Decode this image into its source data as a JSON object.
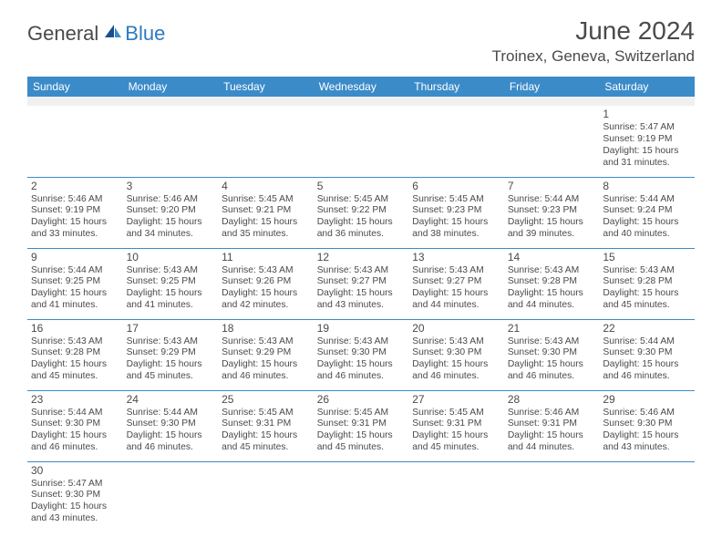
{
  "logo": {
    "part1": "General",
    "part2": "Blue"
  },
  "title": "June 2024",
  "location": "Troinex, Geneva, Switzerland",
  "colors": {
    "header_bg": "#3b8bc9",
    "header_text": "#ffffff",
    "gap_bg": "#f0f0f0",
    "rule": "#3b8bc9",
    "body_text": "#4a4a4a",
    "logo_gray": "#4a4a4a",
    "logo_blue": "#2b7bbf"
  },
  "fonts": {
    "title_size_pt": 21,
    "location_size_pt": 13,
    "dayheader_size_pt": 9,
    "daynum_size_pt": 9,
    "info_size_pt": 8
  },
  "day_headers": [
    "Sunday",
    "Monday",
    "Tuesday",
    "Wednesday",
    "Thursday",
    "Friday",
    "Saturday"
  ],
  "weeks": [
    [
      null,
      null,
      null,
      null,
      null,
      null,
      {
        "n": "1",
        "sr": "Sunrise: 5:47 AM",
        "ss": "Sunset: 9:19 PM",
        "d1": "Daylight: 15 hours",
        "d2": "and 31 minutes."
      }
    ],
    [
      {
        "n": "2",
        "sr": "Sunrise: 5:46 AM",
        "ss": "Sunset: 9:19 PM",
        "d1": "Daylight: 15 hours",
        "d2": "and 33 minutes."
      },
      {
        "n": "3",
        "sr": "Sunrise: 5:46 AM",
        "ss": "Sunset: 9:20 PM",
        "d1": "Daylight: 15 hours",
        "d2": "and 34 minutes."
      },
      {
        "n": "4",
        "sr": "Sunrise: 5:45 AM",
        "ss": "Sunset: 9:21 PM",
        "d1": "Daylight: 15 hours",
        "d2": "and 35 minutes."
      },
      {
        "n": "5",
        "sr": "Sunrise: 5:45 AM",
        "ss": "Sunset: 9:22 PM",
        "d1": "Daylight: 15 hours",
        "d2": "and 36 minutes."
      },
      {
        "n": "6",
        "sr": "Sunrise: 5:45 AM",
        "ss": "Sunset: 9:23 PM",
        "d1": "Daylight: 15 hours",
        "d2": "and 38 minutes."
      },
      {
        "n": "7",
        "sr": "Sunrise: 5:44 AM",
        "ss": "Sunset: 9:23 PM",
        "d1": "Daylight: 15 hours",
        "d2": "and 39 minutes."
      },
      {
        "n": "8",
        "sr": "Sunrise: 5:44 AM",
        "ss": "Sunset: 9:24 PM",
        "d1": "Daylight: 15 hours",
        "d2": "and 40 minutes."
      }
    ],
    [
      {
        "n": "9",
        "sr": "Sunrise: 5:44 AM",
        "ss": "Sunset: 9:25 PM",
        "d1": "Daylight: 15 hours",
        "d2": "and 41 minutes."
      },
      {
        "n": "10",
        "sr": "Sunrise: 5:43 AM",
        "ss": "Sunset: 9:25 PM",
        "d1": "Daylight: 15 hours",
        "d2": "and 41 minutes."
      },
      {
        "n": "11",
        "sr": "Sunrise: 5:43 AM",
        "ss": "Sunset: 9:26 PM",
        "d1": "Daylight: 15 hours",
        "d2": "and 42 minutes."
      },
      {
        "n": "12",
        "sr": "Sunrise: 5:43 AM",
        "ss": "Sunset: 9:27 PM",
        "d1": "Daylight: 15 hours",
        "d2": "and 43 minutes."
      },
      {
        "n": "13",
        "sr": "Sunrise: 5:43 AM",
        "ss": "Sunset: 9:27 PM",
        "d1": "Daylight: 15 hours",
        "d2": "and 44 minutes."
      },
      {
        "n": "14",
        "sr": "Sunrise: 5:43 AM",
        "ss": "Sunset: 9:28 PM",
        "d1": "Daylight: 15 hours",
        "d2": "and 44 minutes."
      },
      {
        "n": "15",
        "sr": "Sunrise: 5:43 AM",
        "ss": "Sunset: 9:28 PM",
        "d1": "Daylight: 15 hours",
        "d2": "and 45 minutes."
      }
    ],
    [
      {
        "n": "16",
        "sr": "Sunrise: 5:43 AM",
        "ss": "Sunset: 9:28 PM",
        "d1": "Daylight: 15 hours",
        "d2": "and 45 minutes."
      },
      {
        "n": "17",
        "sr": "Sunrise: 5:43 AM",
        "ss": "Sunset: 9:29 PM",
        "d1": "Daylight: 15 hours",
        "d2": "and 45 minutes."
      },
      {
        "n": "18",
        "sr": "Sunrise: 5:43 AM",
        "ss": "Sunset: 9:29 PM",
        "d1": "Daylight: 15 hours",
        "d2": "and 46 minutes."
      },
      {
        "n": "19",
        "sr": "Sunrise: 5:43 AM",
        "ss": "Sunset: 9:30 PM",
        "d1": "Daylight: 15 hours",
        "d2": "and 46 minutes."
      },
      {
        "n": "20",
        "sr": "Sunrise: 5:43 AM",
        "ss": "Sunset: 9:30 PM",
        "d1": "Daylight: 15 hours",
        "d2": "and 46 minutes."
      },
      {
        "n": "21",
        "sr": "Sunrise: 5:43 AM",
        "ss": "Sunset: 9:30 PM",
        "d1": "Daylight: 15 hours",
        "d2": "and 46 minutes."
      },
      {
        "n": "22",
        "sr": "Sunrise: 5:44 AM",
        "ss": "Sunset: 9:30 PM",
        "d1": "Daylight: 15 hours",
        "d2": "and 46 minutes."
      }
    ],
    [
      {
        "n": "23",
        "sr": "Sunrise: 5:44 AM",
        "ss": "Sunset: 9:30 PM",
        "d1": "Daylight: 15 hours",
        "d2": "and 46 minutes."
      },
      {
        "n": "24",
        "sr": "Sunrise: 5:44 AM",
        "ss": "Sunset: 9:30 PM",
        "d1": "Daylight: 15 hours",
        "d2": "and 46 minutes."
      },
      {
        "n": "25",
        "sr": "Sunrise: 5:45 AM",
        "ss": "Sunset: 9:31 PM",
        "d1": "Daylight: 15 hours",
        "d2": "and 45 minutes."
      },
      {
        "n": "26",
        "sr": "Sunrise: 5:45 AM",
        "ss": "Sunset: 9:31 PM",
        "d1": "Daylight: 15 hours",
        "d2": "and 45 minutes."
      },
      {
        "n": "27",
        "sr": "Sunrise: 5:45 AM",
        "ss": "Sunset: 9:31 PM",
        "d1": "Daylight: 15 hours",
        "d2": "and 45 minutes."
      },
      {
        "n": "28",
        "sr": "Sunrise: 5:46 AM",
        "ss": "Sunset: 9:31 PM",
        "d1": "Daylight: 15 hours",
        "d2": "and 44 minutes."
      },
      {
        "n": "29",
        "sr": "Sunrise: 5:46 AM",
        "ss": "Sunset: 9:30 PM",
        "d1": "Daylight: 15 hours",
        "d2": "and 43 minutes."
      }
    ],
    [
      {
        "n": "30",
        "sr": "Sunrise: 5:47 AM",
        "ss": "Sunset: 9:30 PM",
        "d1": "Daylight: 15 hours",
        "d2": "and 43 minutes."
      },
      null,
      null,
      null,
      null,
      null,
      null
    ]
  ]
}
